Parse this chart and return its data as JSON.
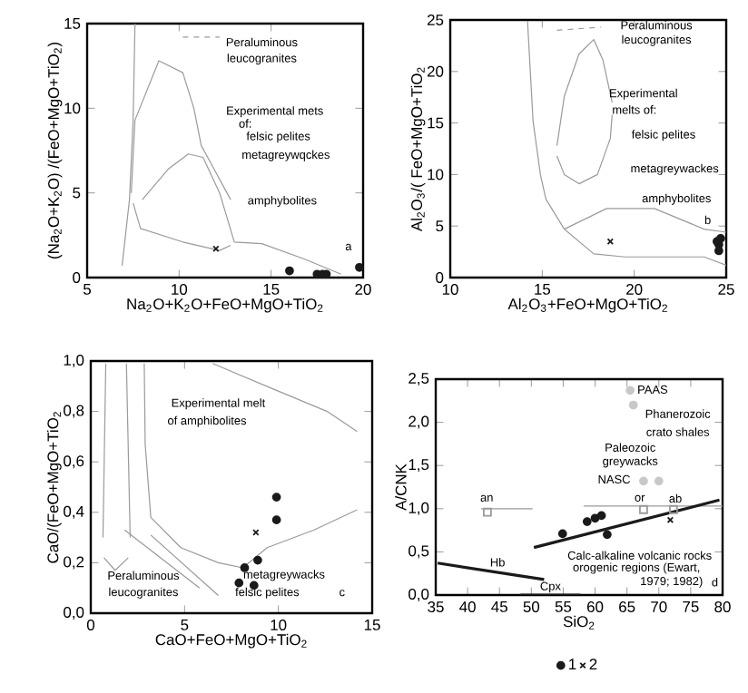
{
  "chart_data": [
    {
      "type": "scatter",
      "xlabel": "Na$_{2}$O+K$_{2}$O+FeO+MgO+TiO$_{2}$",
      "ylabel": "(Na$_{2}$O+K$_{2}$O) /(FeO+MgO+TiO$_{2}$)",
      "xlim": [
        5,
        20
      ],
      "ylim": [
        0,
        15
      ],
      "xticks": [
        5,
        10,
        15,
        20
      ],
      "yticks": [
        0,
        5,
        10,
        15
      ],
      "grid": false,
      "legend": false,
      "series": [
        {
          "type": "line",
          "line_style": "solid",
          "color": "#9a9a9a",
          "x": [
            7.4,
            7.6,
            8.9,
            10.2,
            10.8,
            11.2,
            11.7,
            12.8
          ],
          "values": [
            5.0,
            9.3,
            12.8,
            12.1,
            10.0,
            7.8,
            6.8,
            4.6
          ]
        },
        {
          "type": "line",
          "line_style": "solid",
          "color": "#9a9a9a",
          "x": [
            7.5,
            7.9,
            10.2,
            12.2,
            12.8
          ],
          "values": [
            4.4,
            2.9,
            2.1,
            1.6,
            1.9
          ]
        },
        {
          "type": "line",
          "line_style": "solid",
          "color": "#9a9a9a",
          "x": [
            6.9,
            7.3,
            7.5,
            7.6
          ],
          "values": [
            0.7,
            4.6,
            9.3,
            15
          ]
        },
        {
          "type": "line",
          "line_style": "solid",
          "color": "#9a9a9a",
          "x": [
            8.0,
            9.4,
            10.5,
            11.3,
            12.2,
            13.0,
            14.5,
            16.8,
            18.8
          ],
          "values": [
            4.6,
            6.4,
            7.3,
            7.1,
            5.0,
            2.1,
            2.0,
            1.1,
            0.2
          ]
        },
        {
          "type": "line",
          "line_style": "dashed",
          "color": "#9a9a9a",
          "x": [
            10.2,
            12.2
          ],
          "values": [
            14.2,
            14.2
          ]
        },
        {
          "type": "scatter",
          "marker": "circle",
          "color": "#1a1a1a",
          "x": [
            16,
            17.5,
            17.8,
            18,
            19.8
          ],
          "values": [
            0.4,
            0.2,
            0.2,
            0.2,
            0.6
          ]
        },
        {
          "type": "scatter",
          "marker": "cross",
          "color": "#1a1a1a",
          "x": [
            12
          ],
          "values": [
            1.7
          ]
        }
      ],
      "annotations": [
        "Peraluminous",
        "leucogranites",
        "Experimental mets",
        "of:",
        "felsic pelites",
        "metagreywqckes",
        "amphybolites",
        "a"
      ]
    },
    {
      "type": "scatter",
      "xlabel": "Al$_{2}$O$_{3}$+FeO+MgO+TiO$_{2}$",
      "ylabel": "Al$_{2}$O$_{3}$/( FeO+MgO+TiO$_{2}$",
      "xlim": [
        10,
        25
      ],
      "ylim": [
        0,
        25
      ],
      "xticks": [
        10,
        15,
        20,
        25
      ],
      "yticks": [
        0,
        5,
        10,
        15,
        20,
        25
      ],
      "grid": false,
      "legend": false,
      "series": [
        {
          "type": "line",
          "line_style": "solid",
          "color": "#9a9a9a",
          "x": [
            14.2,
            14.5,
            14.9,
            15.2,
            16.2,
            17.8,
            19.5,
            23.8,
            25
          ],
          "values": [
            24.9,
            15.2,
            10.0,
            7.6,
            4.7,
            2.3,
            2.0,
            2.0,
            1.2
          ]
        },
        {
          "type": "line",
          "line_style": "solid",
          "color": "#9a9a9a",
          "x": [
            15.8,
            16.2,
            17.0,
            17.8,
            18.3,
            18.8
          ],
          "values": [
            12.8,
            17.6,
            21.7,
            23.1,
            21.1,
            17.0
          ]
        },
        {
          "type": "line",
          "line_style": "solid",
          "color": "#9a9a9a",
          "x": [
            15.8,
            16.2,
            17.0,
            18.0,
            18.7,
            18.8
          ],
          "values": [
            11.8,
            10.0,
            9.1,
            10.0,
            13.5,
            15.8
          ]
        },
        {
          "type": "line",
          "line_style": "solid",
          "color": "#9a9a9a",
          "x": [
            16.2,
            18.5,
            21.1,
            23.8,
            25
          ],
          "values": [
            4.7,
            6.7,
            6.7,
            4.7,
            4.4
          ]
        },
        {
          "type": "line",
          "line_style": "dashed",
          "color": "#9a9a9a",
          "x": [
            15.8,
            18.2
          ],
          "values": [
            24.0,
            24.3
          ]
        },
        {
          "type": "scatter",
          "marker": "circle",
          "color": "#1a1a1a",
          "x": [
            24.6,
            24.6,
            24.7,
            24.5
          ],
          "values": [
            2.6,
            3.2,
            3.8,
            3.5
          ]
        },
        {
          "type": "scatter",
          "marker": "cross",
          "color": "#1a1a1a",
          "x": [
            18.7
          ],
          "values": [
            3.5
          ]
        }
      ],
      "annotations": [
        "Peraluminous",
        "leucogranites",
        "Experimental",
        "melts of:",
        "felsic pelites",
        "metagreywackes",
        "amphybolites",
        "b"
      ]
    },
    {
      "type": "scatter",
      "xlabel": "CaO+FeO+MgO+TiO$_{2}$",
      "ylabel": "CaO/(FeO+MgO+TiO$_{2}$",
      "xlim": [
        0,
        15
      ],
      "ylim": [
        0,
        1
      ],
      "xticks": [
        0,
        5,
        10,
        15
      ],
      "yticks": [
        {
          "value": 0,
          "label": "0,0"
        },
        {
          "value": 0.2,
          "label": "0,2"
        },
        {
          "value": 0.4,
          "label": "0,4"
        },
        {
          "value": 0.6,
          "label": "0,6"
        },
        {
          "value": 0.8,
          "label": "0,8"
        },
        {
          "value": 1,
          "label": "1,0"
        }
      ],
      "grid": false,
      "legend": false,
      "series": [
        {
          "type": "line",
          "line_style": "solid",
          "color": "#9a9a9a",
          "x": [
            0.65,
            0.8
          ],
          "values": [
            0.3,
            0.99
          ]
        },
        {
          "type": "line",
          "line_style": "solid",
          "color": "#9a9a9a",
          "x": [
            0.7,
            1.3,
            2.0
          ],
          "values": [
            0.22,
            0.17,
            0.22
          ]
        },
        {
          "type": "line",
          "line_style": "solid",
          "color": "#9a9a9a",
          "x": [
            1.9,
            2.1
          ],
          "values": [
            0.99,
            0.3
          ]
        },
        {
          "type": "line",
          "line_style": "solid",
          "color": "#9a9a9a",
          "x": [
            2.85,
            2.9,
            3.2,
            4.8,
            6.8,
            8.1,
            9.4,
            11.9,
            14.2
          ],
          "values": [
            0.99,
            0.67,
            0.38,
            0.26,
            0.2,
            0.18,
            0.26,
            0.33,
            0.41
          ]
        },
        {
          "type": "line",
          "line_style": "solid",
          "color": "#9a9a9a",
          "x": [
            6.5,
            9.7,
            12.6,
            14.2
          ],
          "values": [
            0.99,
            0.89,
            0.8,
            0.72
          ]
        },
        {
          "type": "line",
          "line_style": "solid",
          "color": "#9a9a9a",
          "x": [
            1.8,
            5.8
          ],
          "values": [
            0.33,
            0.1
          ]
        },
        {
          "type": "line",
          "line_style": "solid",
          "color": "#9a9a9a",
          "x": [
            3.2,
            6.8
          ],
          "values": [
            0.31,
            0.07
          ]
        },
        {
          "type": "scatter",
          "marker": "circle",
          "color": "#1a1a1a",
          "x": [
            9.9,
            9.9,
            8.9,
            8.2,
            7.9,
            8.7
          ],
          "values": [
            0.46,
            0.37,
            0.21,
            0.18,
            0.12,
            0.11
          ]
        },
        {
          "type": "scatter",
          "marker": "cross",
          "color": "#1a1a1a",
          "x": [
            8.8
          ],
          "values": [
            0.32
          ]
        }
      ],
      "annotations": [
        "Experimental melt",
        "of amphibolites",
        "Peraluminous",
        "leucogranites",
        "metagreywacks",
        "felsic pelites",
        "c"
      ]
    },
    {
      "type": "scatter",
      "xlabel": "SiO$_{2}$",
      "ylabel": "A/CNK",
      "xlim": [
        35,
        80
      ],
      "ylim": [
        0,
        2.5
      ],
      "xticks": [
        35,
        40,
        45,
        50,
        55,
        60,
        65,
        70,
        75,
        80
      ],
      "yticks": [
        {
          "value": 0,
          "label": "0,0"
        },
        {
          "value": 0.5,
          "label": "0,5"
        },
        {
          "value": 1,
          "label": "1,0"
        },
        {
          "value": 1.5,
          "label": "1,5"
        },
        {
          "value": 2,
          "label": "2,0"
        },
        {
          "value": 2.5,
          "label": "2,5"
        }
      ],
      "grid": false,
      "legend": "bottom",
      "series": [
        {
          "type": "line",
          "line_style": "solid",
          "color": "#9a9a9a",
          "x": [
            58.2,
            80
          ],
          "values": [
            1.03,
            1.03
          ]
        },
        {
          "type": "line",
          "line_style": "solid",
          "color": "#9a9a9a",
          "x": [
            42.1,
            50.2
          ],
          "values": [
            1.0,
            1.0
          ]
        },
        {
          "type": "line",
          "line_style": "solid",
          "color": "#1a1a1a",
          "x": [
            50.4,
            79.5
          ],
          "values": [
            0.55,
            1.1
          ]
        },
        {
          "type": "line",
          "line_style": "solid",
          "color": "#1a1a1a",
          "x": [
            35.3,
            52
          ],
          "values": [
            0.37,
            0.18
          ]
        },
        {
          "type": "line",
          "line_style": "solid",
          "color": "#1a1a1a",
          "x": [
            48.3,
            57.7
          ],
          "values": [
            0,
            0
          ]
        },
        {
          "type": "scatter",
          "marker": "square",
          "color": "#9a9a9a",
          "x": [
            43.1,
            67.6,
            72.3
          ],
          "values": [
            0.96,
            0.99,
            0.99
          ]
        },
        {
          "type": "scatter",
          "marker": "circle",
          "color": "#c8c8c8",
          "x": [
            65.5,
            66,
            67.6,
            70
          ],
          "values": [
            2.37,
            2.2,
            1.32,
            1.32
          ]
        },
        {
          "type": "scatter",
          "name": "1",
          "marker": "circle",
          "color": "#1a1a1a",
          "x": [
            54.9,
            58.75,
            60,
            61,
            61.9
          ],
          "values": [
            0.71,
            0.85,
            0.89,
            0.92,
            0.7
          ]
        },
        {
          "type": "scatter",
          "name": "2",
          "marker": "cross",
          "color": "#1a1a1a",
          "x": [
            71.8
          ],
          "values": [
            0.87
          ]
        }
      ],
      "annotations": [
        "PAAS",
        "Phanerozoic",
        "crato shales",
        "Paleozoic",
        "greywacks",
        "NASC",
        "an",
        {
          "text": "or",
          "x": 67,
          "y": 1.12
        },
        {
          "text": "ab",
          "x": 72.6,
          "y": 1.12
        },
        {
          "text": "Hb",
          "x": 44.7,
          "y": 0.38
        },
        {
          "text": "Cpx",
          "x": 53,
          "y": 0.09
        },
        "Calc-alkaline volcanic rocks",
        "orogenic regions (Ewart,",
        "1979; 1982)",
        "d"
      ]
    }
  ]
}
